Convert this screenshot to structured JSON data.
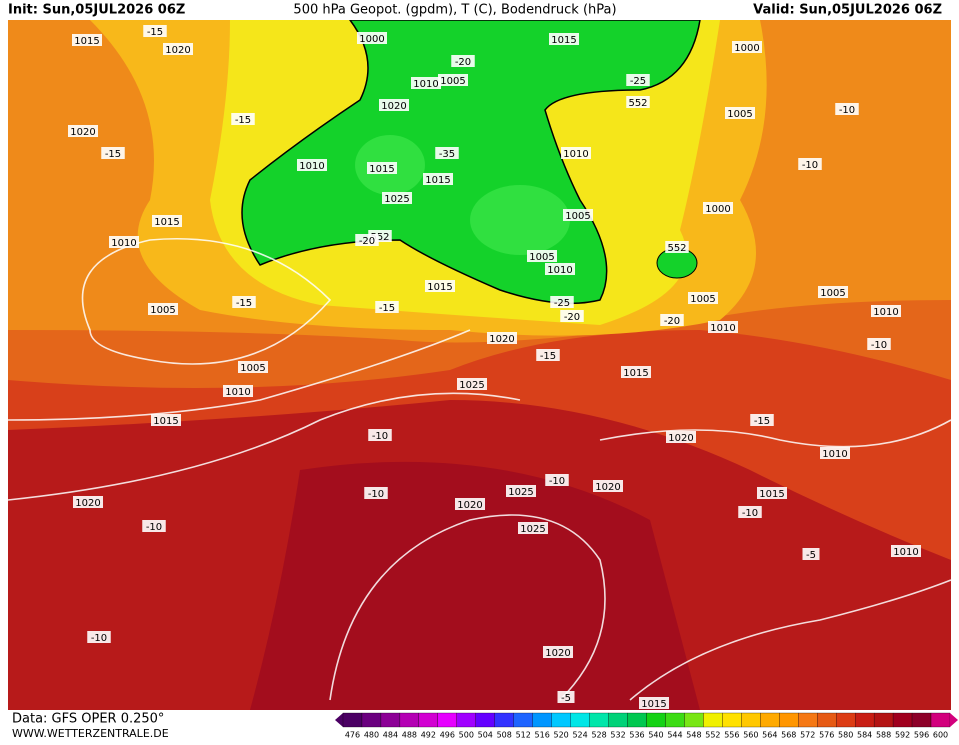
{
  "header": {
    "init": "Init: Sun,05JUL2026 06Z",
    "title": "500 hPa Geopot. (gpdm), T (C), Bodendruck (hPa)",
    "valid": "Valid: Sun,05JUL2026 06Z"
  },
  "footer": {
    "source": "Data: GFS OPER 0.250°",
    "site": "WWW.WETTERZENTRALE.DE"
  },
  "legend": {
    "labels": [
      476,
      480,
      484,
      488,
      492,
      496,
      500,
      504,
      508,
      512,
      516,
      520,
      524,
      528,
      532,
      536,
      540,
      544,
      548,
      552,
      556,
      560,
      564,
      568,
      572,
      576,
      580,
      584,
      588,
      592,
      596,
      600
    ],
    "colors": [
      "#4b0064",
      "#6a007f",
      "#8c0096",
      "#b400b4",
      "#d200d2",
      "#e600ff",
      "#a000ff",
      "#6400ff",
      "#3232ff",
      "#1e64ff",
      "#0096ff",
      "#00c8ff",
      "#00e6e6",
      "#00e6aa",
      "#00d278",
      "#00c850",
      "#14d214",
      "#3cdc14",
      "#78e614",
      "#f0f000",
      "#ffe100",
      "#ffc800",
      "#ffaa00",
      "#ff9600",
      "#f57814",
      "#e65a14",
      "#dc3c14",
      "#c81e14",
      "#b41414",
      "#a0001e",
      "#8c0028",
      "#d2007d"
    ]
  },
  "map_labels": [
    "1015",
    "-15",
    "1020",
    "1000",
    "-20",
    "1015",
    "1000",
    "1010",
    "1005",
    "-25",
    "552",
    "1005",
    "-10",
    "1020",
    "-15",
    "1020",
    "-15",
    "1010",
    "-10",
    "1010",
    "1015",
    "-35",
    "1015",
    "1025",
    "1005",
    "1000",
    "1015",
    "552",
    "1010",
    "-20",
    "552",
    "1005",
    "1010",
    "1015",
    "1005",
    "-15",
    "1005",
    "-15",
    "-25",
    "1005",
    "1010",
    "-20",
    "-20",
    "1010",
    "1020",
    "-10",
    "-15",
    "1005",
    "1015",
    "1010",
    "1025",
    "1015",
    "-15",
    "-10",
    "1020",
    "1010",
    "1020",
    "1025",
    "-10",
    "1015",
    "-10",
    "1020",
    "1020",
    "-10",
    "-10",
    "1025",
    "-5",
    "1010",
    "-10",
    "1020",
    "-5",
    "1015"
  ]
}
